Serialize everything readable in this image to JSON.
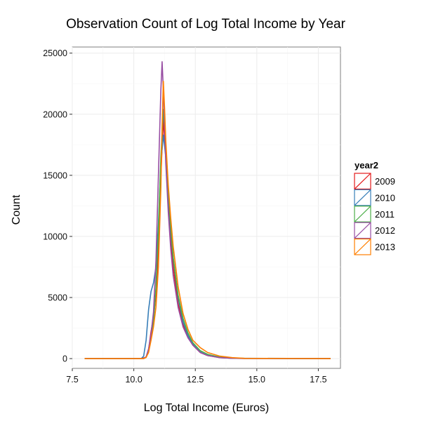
{
  "chart_data": {
    "type": "line",
    "title": "Observation Count of Log Total Income by Year",
    "xlabel": "Log Total Income (Euros)",
    "ylabel": "Count",
    "xlim": [
      7.5,
      18.4
    ],
    "ylim": [
      -800,
      25500
    ],
    "x_ticks": [
      7.5,
      10.0,
      12.5,
      15.0,
      17.5
    ],
    "x_tick_labels": [
      "7.5",
      "10.0",
      "12.5",
      "15.0",
      "17.5"
    ],
    "y_ticks": [
      0,
      5000,
      10000,
      15000,
      20000,
      25000
    ],
    "y_tick_labels": [
      "0",
      "5000",
      "10000",
      "15000",
      "20000",
      "25000"
    ],
    "grid": true,
    "legend": {
      "title": "year2",
      "position": "right"
    },
    "series": [
      {
        "name": "2009",
        "color": "#e41a1c",
        "points": [
          [
            8.0,
            0
          ],
          [
            10.3,
            0
          ],
          [
            10.5,
            100
          ],
          [
            10.6,
            700
          ],
          [
            10.7,
            2200
          ],
          [
            10.8,
            3400
          ],
          [
            10.9,
            5200
          ],
          [
            11.0,
            9000
          ],
          [
            11.1,
            15000
          ],
          [
            11.2,
            19600
          ],
          [
            11.3,
            16500
          ],
          [
            11.4,
            13000
          ],
          [
            11.5,
            10000
          ],
          [
            11.6,
            7500
          ],
          [
            11.8,
            4500
          ],
          [
            12.0,
            2800
          ],
          [
            12.2,
            1800
          ],
          [
            12.4,
            1100
          ],
          [
            12.7,
            500
          ],
          [
            13.0,
            250
          ],
          [
            13.5,
            80
          ],
          [
            14.0,
            30
          ],
          [
            14.5,
            10
          ],
          [
            18.0,
            0
          ]
        ]
      },
      {
        "name": "2010",
        "color": "#377eb8",
        "points": [
          [
            8.0,
            0
          ],
          [
            10.3,
            0
          ],
          [
            10.4,
            200
          ],
          [
            10.5,
            1500
          ],
          [
            10.6,
            4000
          ],
          [
            10.7,
            5500
          ],
          [
            10.8,
            6200
          ],
          [
            10.9,
            7500
          ],
          [
            11.0,
            11000
          ],
          [
            11.1,
            16000
          ],
          [
            11.2,
            18300
          ],
          [
            11.3,
            16500
          ],
          [
            11.4,
            13500
          ],
          [
            11.5,
            10500
          ],
          [
            11.6,
            8200
          ],
          [
            11.8,
            5000
          ],
          [
            12.0,
            3000
          ],
          [
            12.2,
            1900
          ],
          [
            12.4,
            1200
          ],
          [
            12.7,
            550
          ],
          [
            13.0,
            260
          ],
          [
            13.5,
            90
          ],
          [
            14.0,
            30
          ],
          [
            18.0,
            0
          ]
        ]
      },
      {
        "name": "2011",
        "color": "#4daf4a",
        "points": [
          [
            8.0,
            0
          ],
          [
            10.4,
            0
          ],
          [
            10.5,
            100
          ],
          [
            10.6,
            700
          ],
          [
            10.7,
            1800
          ],
          [
            10.8,
            3000
          ],
          [
            10.9,
            5800
          ],
          [
            11.0,
            10500
          ],
          [
            11.1,
            16500
          ],
          [
            11.2,
            20400
          ],
          [
            11.3,
            17500
          ],
          [
            11.4,
            13800
          ],
          [
            11.5,
            10800
          ],
          [
            11.6,
            8300
          ],
          [
            11.8,
            5200
          ],
          [
            12.0,
            3300
          ],
          [
            12.2,
            2100
          ],
          [
            12.4,
            1300
          ],
          [
            12.7,
            650
          ],
          [
            13.0,
            350
          ],
          [
            13.5,
            120
          ],
          [
            14.0,
            50
          ],
          [
            14.5,
            15
          ],
          [
            18.0,
            0
          ]
        ]
      },
      {
        "name": "2012",
        "color": "#984ea3",
        "points": [
          [
            8.0,
            0
          ],
          [
            10.4,
            0
          ],
          [
            10.5,
            150
          ],
          [
            10.6,
            800
          ],
          [
            10.7,
            2000
          ],
          [
            10.8,
            3800
          ],
          [
            10.9,
            8000
          ],
          [
            11.0,
            15000
          ],
          [
            11.1,
            22000
          ],
          [
            11.15,
            24300
          ],
          [
            11.2,
            22000
          ],
          [
            11.3,
            16000
          ],
          [
            11.4,
            12000
          ],
          [
            11.5,
            9000
          ],
          [
            11.6,
            6800
          ],
          [
            11.8,
            4200
          ],
          [
            12.0,
            2600
          ],
          [
            12.2,
            1700
          ],
          [
            12.4,
            1100
          ],
          [
            12.7,
            500
          ],
          [
            13.0,
            250
          ],
          [
            13.5,
            80
          ],
          [
            14.0,
            25
          ],
          [
            18.0,
            0
          ]
        ]
      },
      {
        "name": "2013",
        "color": "#ff7f00",
        "points": [
          [
            8.0,
            0
          ],
          [
            10.4,
            0
          ],
          [
            10.5,
            100
          ],
          [
            10.6,
            500
          ],
          [
            10.7,
            1500
          ],
          [
            10.8,
            2600
          ],
          [
            10.9,
            4200
          ],
          [
            11.0,
            7500
          ],
          [
            11.1,
            14000
          ],
          [
            11.15,
            19000
          ],
          [
            11.2,
            22700
          ],
          [
            11.25,
            20500
          ],
          [
            11.3,
            17800
          ],
          [
            11.4,
            14200
          ],
          [
            11.5,
            11500
          ],
          [
            11.6,
            9200
          ],
          [
            11.8,
            5900
          ],
          [
            12.0,
            3700
          ],
          [
            12.2,
            2400
          ],
          [
            12.4,
            1500
          ],
          [
            12.7,
            900
          ],
          [
            13.0,
            500
          ],
          [
            13.5,
            200
          ],
          [
            14.0,
            80
          ],
          [
            14.5,
            25
          ],
          [
            18.0,
            0
          ]
        ]
      }
    ]
  }
}
